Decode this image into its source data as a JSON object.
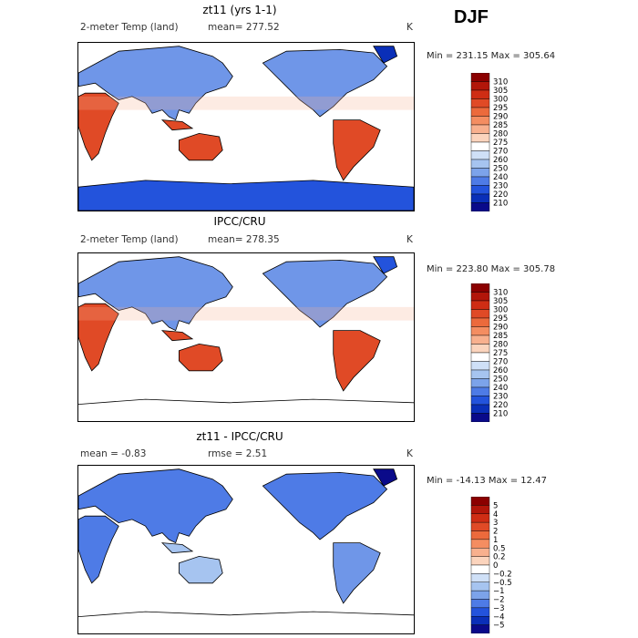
{
  "season": "DJF",
  "panels": [
    {
      "title": "zt11 (yrs 1-1)",
      "left_label": "2-meter Temp (land)",
      "mid_label": "mean= 277.52",
      "unit": "K",
      "minmax": "Min = 231.15 Max = 305.64",
      "antarctica": true,
      "colorbar": {
        "labels": [
          "310",
          "305",
          "300",
          "295",
          "290",
          "285",
          "280",
          "275",
          "270",
          "260",
          "250",
          "240",
          "230",
          "220",
          "210"
        ],
        "colors": [
          "#8b0000",
          "#b2160a",
          "#cf2d14",
          "#e04a26",
          "#ec6a3c",
          "#f48d61",
          "#f8b08e",
          "#fbd4bd",
          "#ffffff",
          "#cfe0f7",
          "#a6c4f0",
          "#7ca3ea",
          "#4e7be6",
          "#2353dc",
          "#0a2fb8",
          "#0a0a8a"
        ]
      }
    },
    {
      "title": "IPCC/CRU",
      "left_label": "2-meter Temp (land)",
      "mid_label": "mean= 278.35",
      "unit": "K",
      "minmax": "Min = 223.80 Max = 305.78",
      "antarctica": false,
      "colorbar": {
        "labels": [
          "310",
          "305",
          "300",
          "295",
          "290",
          "285",
          "280",
          "275",
          "270",
          "260",
          "250",
          "240",
          "230",
          "220",
          "210"
        ],
        "colors": [
          "#8b0000",
          "#b2160a",
          "#cf2d14",
          "#e04a26",
          "#ec6a3c",
          "#f48d61",
          "#f8b08e",
          "#fbd4bd",
          "#ffffff",
          "#cfe0f7",
          "#a6c4f0",
          "#7ca3ea",
          "#4e7be6",
          "#2353dc",
          "#0a2fb8",
          "#0a0a8a"
        ]
      }
    },
    {
      "title": "zt11 - IPCC/CRU",
      "left_label": "mean =   -0.83",
      "mid_label": "rmse =    2.51",
      "unit": "K",
      "minmax": "Min = -14.13 Max =  12.47",
      "antarctica": false,
      "colorbar": {
        "labels": [
          "5",
          "4",
          "3",
          "2",
          "1",
          "0.5",
          "0.2",
          "0",
          "−0.2",
          "−0.5",
          "−1",
          "−2",
          "−3",
          "−4",
          "−5"
        ],
        "colors": [
          "#8b0000",
          "#b2160a",
          "#cf2d14",
          "#e04a26",
          "#ec6a3c",
          "#f48d61",
          "#f8b08e",
          "#fbd4bd",
          "#ffffff",
          "#cfe0f7",
          "#a6c4f0",
          "#7ca3ea",
          "#4e7be6",
          "#2353dc",
          "#0a2fb8",
          "#0a0a8a"
        ]
      }
    }
  ]
}
